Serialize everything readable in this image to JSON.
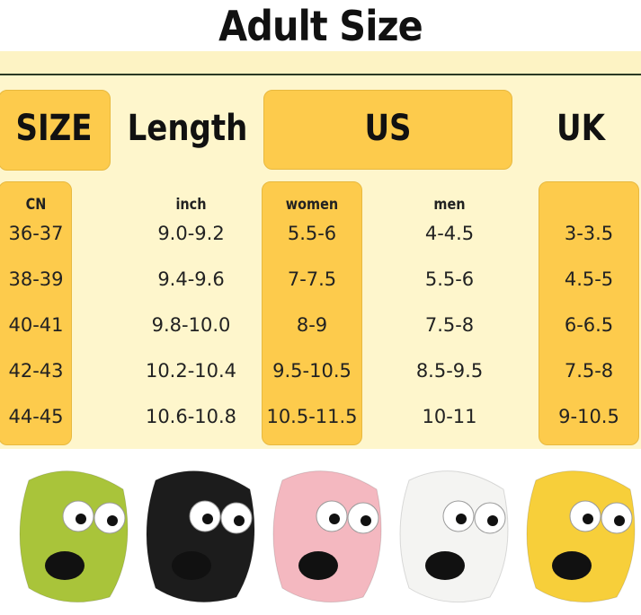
{
  "title": "Adult Size",
  "headers": {
    "size": "SIZE",
    "length": "Length",
    "us": "US",
    "uk": "UK"
  },
  "subheaders": [
    "CN",
    "inch",
    "women",
    "men",
    ""
  ],
  "rows": [
    [
      "36-37",
      "9.0-9.2",
      "5.5-6",
      "4-4.5",
      "3-3.5"
    ],
    [
      "38-39",
      "9.4-9.6",
      "7-7.5",
      "5.5-6",
      "4.5-5"
    ],
    [
      "40-41",
      "9.8-10.0",
      "8-9",
      "7.5-8",
      "6-6.5"
    ],
    [
      "42-43",
      "10.2-10.4",
      "9.5-10.5",
      "8.5-9.5",
      "7.5-8"
    ],
    [
      "44-45",
      "10.6-10.8",
      "10.5-11.5",
      "10-11",
      "9-10.5"
    ]
  ],
  "colors": {
    "accent": "#fdcb4c",
    "panel": "#fef6cc"
  },
  "slippers": [
    "green",
    "black",
    "pink",
    "white",
    "yellow"
  ]
}
